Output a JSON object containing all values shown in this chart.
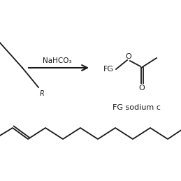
{
  "bg_color": "#ffffff",
  "arrow_label": "NaHCO₃",
  "product_label": "FG sodium c",
  "fg_label": "FG",
  "o_top_label": "O",
  "o_bottom_label": "O",
  "r_label": "R",
  "color": "#1a1a1a"
}
